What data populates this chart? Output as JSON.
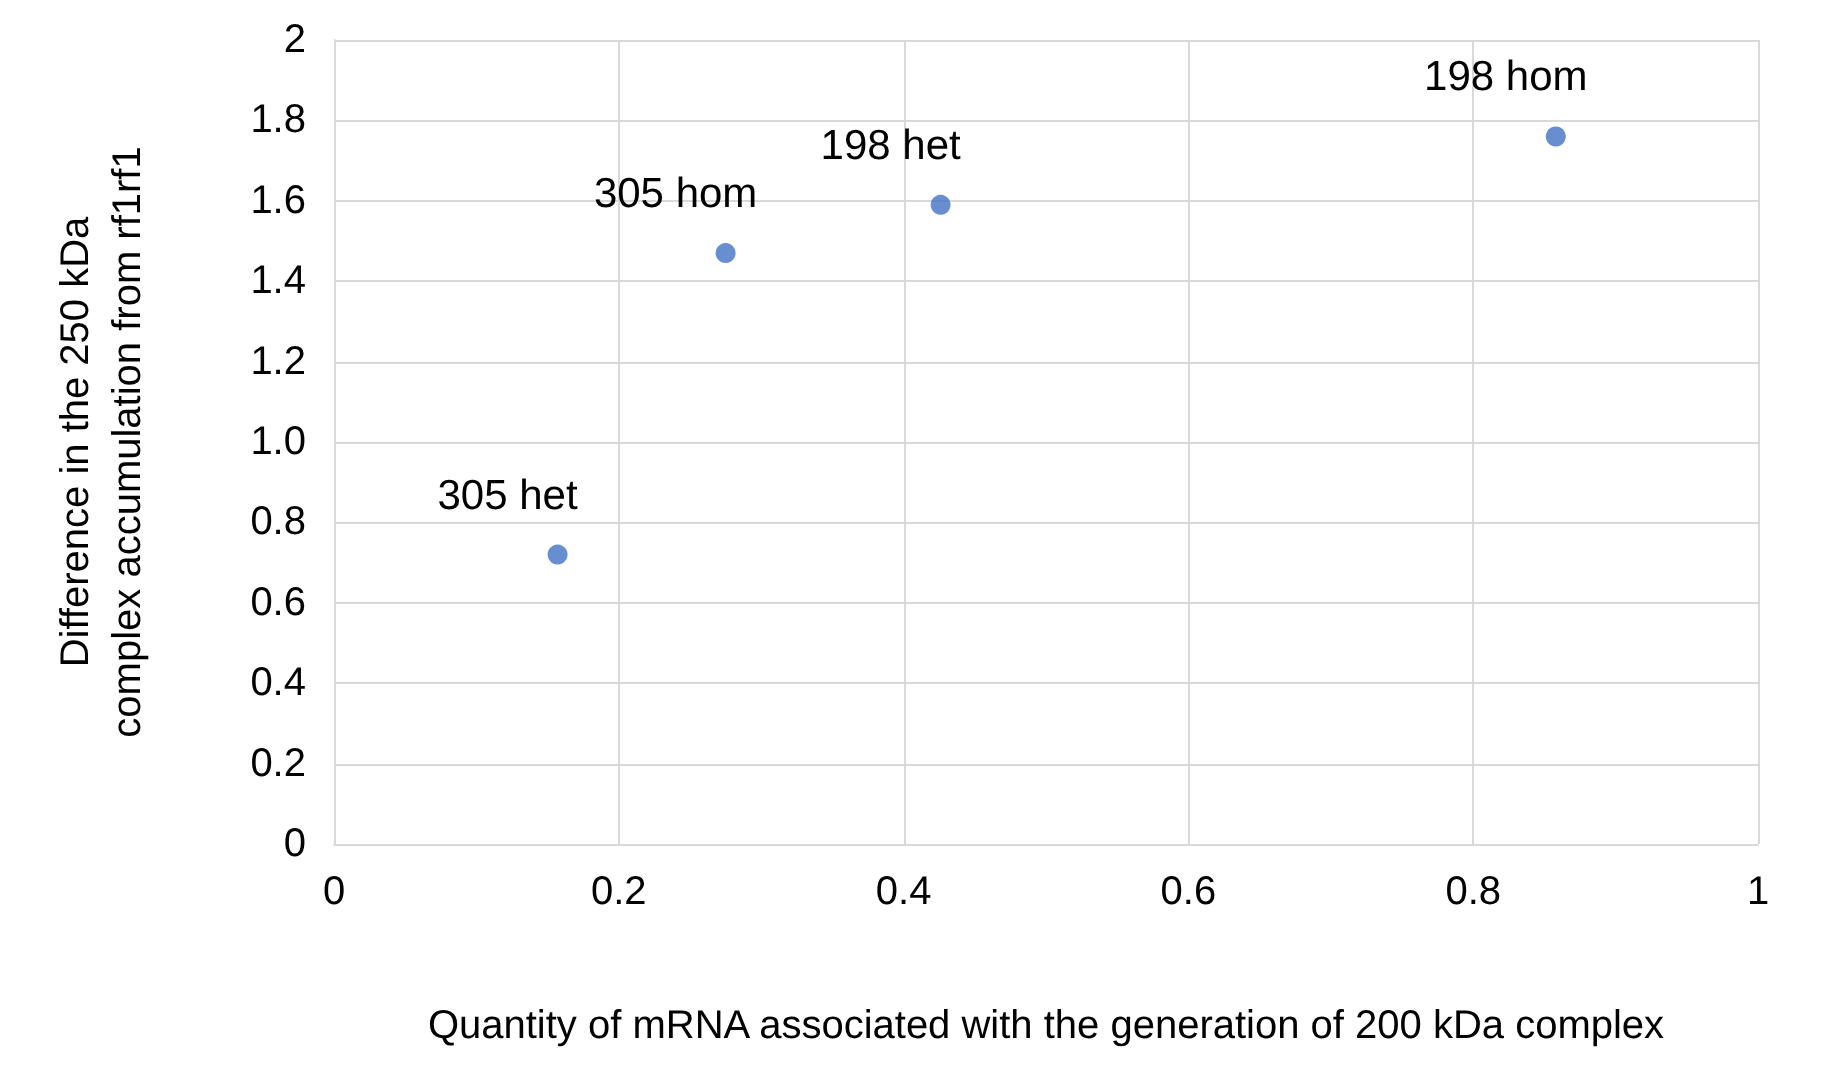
{
  "chart_data": {
    "type": "scatter",
    "xlabel": "Quantity of mRNA associated with the generation of 200 kDa complex",
    "ylabel": "Difference in the 250 kDa complex accumulation from rf1rf1",
    "x": [
      0.157,
      0.275,
      0.426,
      0.858
    ],
    "values": [
      0.72,
      1.47,
      1.59,
      1.76
    ],
    "color": "#4472c4",
    "marker": "circle",
    "grid": true,
    "xlim": [
      0,
      1
    ],
    "xticks": [
      0,
      0.2,
      0.4,
      0.6,
      0.8,
      1
    ],
    "ylim": [
      0,
      2
    ],
    "yticks": [
      0,
      0.2,
      0.4,
      0.6,
      0.8,
      {
        "value": 1,
        "label": "1.0"
      },
      1.2,
      1.4,
      1.6,
      1.8,
      2
    ],
    "annotations": [
      {
        "text": "305 het",
        "x": 0.157,
        "y": 0.72
      },
      {
        "text": "305 hom",
        "x": 0.275,
        "y": 1.47
      },
      {
        "text": "198 het",
        "x": 0.426,
        "y": 1.59
      },
      {
        "text": "198 hom",
        "x": 0.858,
        "y": 1.76
      }
    ]
  }
}
